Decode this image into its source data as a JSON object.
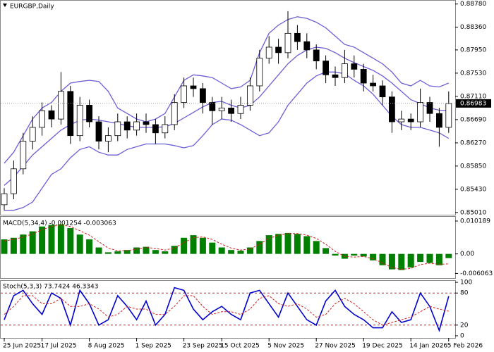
{
  "chart_data": [
    {
      "type": "candlestick",
      "title": "EURGBP,Daily",
      "categories": [
        "25 Jun 2025",
        null,
        null,
        null,
        "17 Jul 2025",
        null,
        null,
        null,
        null,
        "8 Aug 2025",
        null,
        null,
        null,
        null,
        "1 Sep 2025",
        null,
        null,
        null,
        null,
        "23 Sep 2025",
        null,
        null,
        null,
        "15 Oct 2025",
        null,
        null,
        null,
        null,
        "5 Nov 2025",
        null,
        null,
        null,
        null,
        "27 Nov 2025",
        null,
        null,
        null,
        null,
        "19 Dec 2025",
        null,
        null,
        null,
        null,
        "14 Jan 2026",
        null,
        null,
        null,
        "5 Feb 2026"
      ],
      "open": [
        0.8515,
        0.8535,
        0.858,
        0.863,
        0.8655,
        0.8685,
        0.867,
        0.872,
        0.864,
        0.8695,
        0.8665,
        0.863,
        0.864,
        0.8665,
        0.865,
        0.8665,
        0.866,
        0.8645,
        0.866,
        0.87,
        0.873,
        0.8725,
        0.87,
        0.8685,
        0.869,
        0.868,
        0.8695,
        0.873,
        0.878,
        0.88,
        0.879,
        0.8825,
        0.881,
        0.8795,
        0.8775,
        0.875,
        0.8745,
        0.877,
        0.876,
        0.8735,
        0.873,
        0.871,
        0.8665,
        0.867,
        0.8665,
        0.87,
        0.868,
        0.8655
      ],
      "high": [
        0.8545,
        0.8595,
        0.8645,
        0.8675,
        0.87,
        0.8695,
        0.8755,
        0.873,
        0.871,
        0.8705,
        0.8675,
        0.8655,
        0.868,
        0.8675,
        0.868,
        0.868,
        0.867,
        0.8675,
        0.8715,
        0.8745,
        0.8745,
        0.8735,
        0.871,
        0.871,
        0.8705,
        0.871,
        0.8745,
        0.8795,
        0.882,
        0.8815,
        0.8865,
        0.884,
        0.8825,
        0.8805,
        0.8785,
        0.8765,
        0.8795,
        0.8785,
        0.877,
        0.875,
        0.874,
        0.872,
        0.8685,
        0.868,
        0.8725,
        0.871,
        0.869,
        0.872
      ],
      "low": [
        0.8505,
        0.8525,
        0.857,
        0.8615,
        0.864,
        0.8655,
        0.866,
        0.8625,
        0.863,
        0.8655,
        0.8615,
        0.861,
        0.863,
        0.8635,
        0.864,
        0.8645,
        0.8625,
        0.8635,
        0.865,
        0.869,
        0.871,
        0.868,
        0.866,
        0.867,
        0.8665,
        0.867,
        0.8685,
        0.872,
        0.877,
        0.877,
        0.878,
        0.8795,
        0.878,
        0.876,
        0.8735,
        0.873,
        0.8735,
        0.8745,
        0.872,
        0.872,
        0.8695,
        0.8645,
        0.865,
        0.865,
        0.8655,
        0.8665,
        0.862,
        0.8645
      ],
      "close": [
        0.8535,
        0.858,
        0.863,
        0.8655,
        0.8685,
        0.867,
        0.872,
        0.864,
        0.8695,
        0.8665,
        0.863,
        0.864,
        0.8665,
        0.865,
        0.8665,
        0.866,
        0.8645,
        0.866,
        0.87,
        0.873,
        0.8725,
        0.87,
        0.8685,
        0.869,
        0.868,
        0.8695,
        0.873,
        0.878,
        0.88,
        0.879,
        0.8825,
        0.881,
        0.8795,
        0.8775,
        0.875,
        0.8745,
        0.877,
        0.876,
        0.8735,
        0.873,
        0.871,
        0.8665,
        0.867,
        0.8665,
        0.87,
        0.868,
        0.8655,
        0.8698
      ],
      "up_color": "#ffffff",
      "down_color": "#000000",
      "wick_color": "#000000",
      "series": [
        {
          "color": "#6b5fd6",
          "values": [
            0.859,
            0.861,
            0.864,
            0.867,
            0.869,
            0.87,
            0.872,
            0.8735,
            0.8738,
            0.874,
            0.8738,
            0.872,
            0.869,
            0.868,
            0.867,
            0.8665,
            0.867,
            0.868,
            0.871,
            0.874,
            0.875,
            0.8748,
            0.8745,
            0.8735,
            0.8725,
            0.8728,
            0.874,
            0.879,
            0.8825,
            0.884,
            0.885,
            0.8855,
            0.8852,
            0.8845,
            0.8835,
            0.882,
            0.8805,
            0.88,
            0.879,
            0.878,
            0.877,
            0.8755,
            0.8735,
            0.873,
            0.874,
            0.873,
            0.8728,
            0.8735
          ]
        },
        {
          "color": "#6b5fd6",
          "values": [
            0.855,
            0.8565,
            0.8585,
            0.8605,
            0.862,
            0.8635,
            0.865,
            0.866,
            0.8668,
            0.867,
            0.8668,
            0.8665,
            0.8662,
            0.8658,
            0.8655,
            0.8655,
            0.8655,
            0.8656,
            0.8662,
            0.8672,
            0.8682,
            0.8692,
            0.87,
            0.8702,
            0.8695,
            0.869,
            0.8695,
            0.871,
            0.873,
            0.875,
            0.877,
            0.8785,
            0.8795,
            0.88,
            0.8798,
            0.879,
            0.878,
            0.8772,
            0.8765,
            0.8758,
            0.8748,
            0.8735,
            0.872,
            0.8705,
            0.8698,
            0.869,
            0.8686,
            0.8685
          ]
        },
        {
          "color": "#6b5fd6",
          "values": [
            0.8505,
            0.8505,
            0.851,
            0.852,
            0.8545,
            0.857,
            0.858,
            0.86,
            0.8615,
            0.862,
            0.861,
            0.8605,
            0.8605,
            0.8615,
            0.862,
            0.8625,
            0.8625,
            0.8625,
            0.8622,
            0.8618,
            0.8622,
            0.864,
            0.866,
            0.867,
            0.8668,
            0.866,
            0.865,
            0.864,
            0.8645,
            0.8665,
            0.8695,
            0.8715,
            0.8735,
            0.8748,
            0.8755,
            0.8755,
            0.8752,
            0.874,
            0.873,
            0.8715,
            0.8695,
            0.8675,
            0.866,
            0.8655,
            0.8655,
            0.865,
            0.8645,
            0.8635
          ]
        }
      ],
      "last_price": {
        "value": 0.86983,
        "label": "0.86983"
      },
      "ylim": [
        0.8497,
        0.8884
      ],
      "yticks": [
        {
          "value": 0.8878,
          "label": "0.88780"
        },
        {
          "value": 0.8836,
          "label": "0.88360"
        },
        {
          "value": 0.8795,
          "label": "0.87950"
        },
        {
          "value": 0.8753,
          "label": "0.87530"
        },
        {
          "value": 0.8711,
          "label": "0.87110"
        },
        {
          "value": 0.8669,
          "label": "0.86690"
        },
        {
          "value": 0.8627,
          "label": "0.86270"
        },
        {
          "value": 0.8585,
          "label": "0.85850"
        },
        {
          "value": 0.8543,
          "label": "0.85430"
        },
        {
          "value": 0.8501,
          "label": "0.85010"
        }
      ]
    },
    {
      "type": "macd",
      "title": "MACD(5,34,4) -0.001254 -0.003063",
      "color": "#008000",
      "values": [
        0.0045,
        0.005,
        0.006,
        0.007,
        0.0085,
        0.009,
        0.0092,
        0.008,
        0.006,
        0.0045,
        0.002,
        0.0005,
        0.0008,
        0.0012,
        0.002,
        0.0022,
        0.0012,
        0.0008,
        0.0025,
        0.005,
        0.0058,
        0.005,
        0.0035,
        0.002,
        0.0012,
        0.001,
        0.002,
        0.004,
        0.0058,
        0.0062,
        0.0065,
        0.0062,
        0.0055,
        0.004,
        0.0018,
        -0.0005,
        -0.0015,
        -0.0005,
        -0.0008,
        -0.002,
        -0.0035,
        -0.0048,
        -0.005,
        -0.0042,
        -0.0025,
        -0.0028,
        -0.0035,
        -0.0013
      ],
      "signal": {
        "color": "#d02020",
        "values": [
          0.004,
          0.0045,
          0.0052,
          0.0062,
          0.0075,
          0.0085,
          0.009,
          0.0085,
          0.0072,
          0.0058,
          0.0038,
          0.0018,
          0.001,
          0.001,
          0.0015,
          0.002,
          0.0017,
          0.0012,
          0.0018,
          0.0035,
          0.005,
          0.0053,
          0.0045,
          0.003,
          0.0018,
          0.0012,
          0.0015,
          0.003,
          0.0048,
          0.0058,
          0.0063,
          0.0063,
          0.0058,
          0.0048,
          0.003,
          0.0008,
          -0.0008,
          -0.001,
          -0.0008,
          -0.0015,
          -0.0028,
          -0.0042,
          -0.0048,
          -0.0045,
          -0.0033,
          -0.0029,
          -0.0032,
          -0.0031
        ]
      },
      "ylim": [
        -0.0075,
        0.0115
      ],
      "yticks": [
        0.010189,
        {
          "value": 0,
          "label": "0.00"
        },
        -0.006063
      ]
    },
    {
      "type": "stochastic",
      "title": "Stoch(5,3,3) 73.7424 46.3343",
      "level_color": "#c02020",
      "series": [
        {
          "color": "#0000cd",
          "values": [
            30,
            75,
            85,
            60,
            40,
            80,
            70,
            20,
            85,
            60,
            20,
            30,
            75,
            55,
            30,
            65,
            20,
            40,
            90,
            85,
            50,
            30,
            45,
            55,
            40,
            30,
            80,
            85,
            60,
            35,
            80,
            55,
            30,
            20,
            65,
            85,
            55,
            40,
            30,
            15,
            15,
            45,
            25,
            30,
            80,
            55,
            10,
            74
          ]
        },
        {
          "color": "#d02020",
          "values": [
            40,
            55,
            75,
            75,
            60,
            60,
            70,
            55,
            55,
            60,
            50,
            35,
            40,
            55,
            50,
            50,
            40,
            40,
            55,
            75,
            75,
            55,
            40,
            45,
            45,
            40,
            50,
            70,
            75,
            60,
            55,
            60,
            50,
            35,
            40,
            60,
            70,
            60,
            45,
            30,
            20,
            25,
            30,
            35,
            45,
            55,
            50,
            46
          ]
        }
      ],
      "ylim": [
        -4,
        102.7
      ],
      "yticks": [
        100,
        80,
        20,
        0
      ]
    }
  ]
}
